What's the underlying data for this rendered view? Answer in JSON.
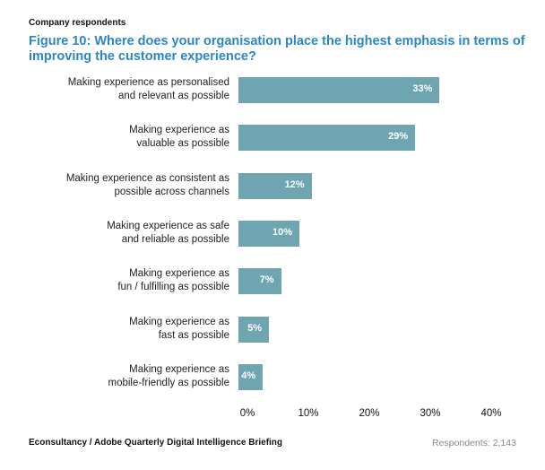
{
  "subtitle": "Company respondents",
  "source": "Econsultancy / Adobe Quarterly Digital Intelligence Briefing",
  "respondents": "Respondents: 2,143",
  "colors": {
    "bar": "#6fa5b0",
    "title": "#2a87c4"
  },
  "chart_data": {
    "type": "bar",
    "orientation": "horizontal",
    "title": "Figure 10: Where does your organisation place the highest emphasis in terms of improving the customer experience?",
    "categories": [
      "Making experience as personalised\nand relevant as possible",
      "Making experience as\nvaluable as possible",
      "Making experience as consistent as\npossible across channels",
      "Making experience as safe\nand reliable as possible",
      "Making experience as\nfun / fulfilling as possible",
      "Making experience as\nfast as possible",
      "Making experience as\nmobile-friendly as possible"
    ],
    "values": [
      33,
      29,
      12,
      10,
      7,
      5,
      4
    ],
    "data_labels": [
      "33%",
      "29%",
      "12%",
      "10%",
      "7%",
      "5%",
      "4%"
    ],
    "xlim": [
      0,
      40
    ],
    "ticks": [
      "0%",
      "10%",
      "20%",
      "30%",
      "40%"
    ],
    "grid": false
  }
}
